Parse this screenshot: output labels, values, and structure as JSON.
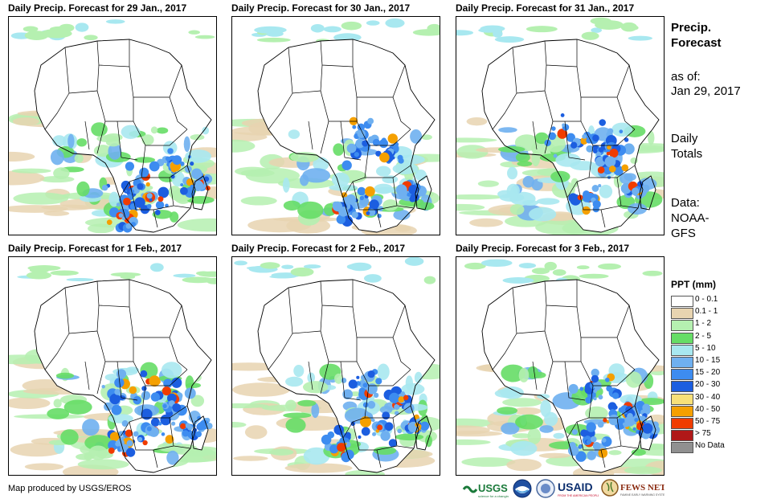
{
  "panels": [
    {
      "title": "Daily Precip. Forecast for 29 Jan., 2017",
      "rain": [
        [
          160,
          215,
          40
        ],
        [
          185,
          225,
          30
        ],
        [
          215,
          185,
          25
        ],
        [
          245,
          210,
          20
        ],
        [
          150,
          245,
          25
        ]
      ]
    },
    {
      "title": "Daily Precip. Forecast for 30 Jan., 2017",
      "rain": [
        [
          170,
          160,
          40
        ],
        [
          175,
          230,
          30
        ],
        [
          205,
          170,
          25
        ],
        [
          235,
          215,
          15
        ],
        [
          150,
          240,
          20
        ]
      ]
    },
    {
      "title": "Daily Precip. Forecast for 31 Jan., 2017",
      "rain": [
        [
          160,
          155,
          45
        ],
        [
          200,
          160,
          30
        ],
        [
          175,
          225,
          25
        ],
        [
          200,
          180,
          25
        ],
        [
          235,
          215,
          15
        ]
      ]
    },
    {
      "title": "Daily Precip. Forecast for 1 Feb., 2017",
      "rain": [
        [
          160,
          165,
          40
        ],
        [
          185,
          215,
          35
        ],
        [
          215,
          175,
          25
        ],
        [
          240,
          210,
          20
        ],
        [
          150,
          230,
          20
        ]
      ]
    },
    {
      "title": "Daily Precip. Forecast for 2 Feb., 2017",
      "rain": [
        [
          175,
          160,
          35
        ],
        [
          195,
          210,
          35
        ],
        [
          220,
          180,
          20
        ],
        [
          150,
          230,
          25
        ],
        [
          240,
          210,
          15
        ]
      ]
    },
    {
      "title": "Daily Precip. Forecast for 3 Feb., 2017",
      "rain": [
        [
          180,
          160,
          30
        ],
        [
          205,
          195,
          40
        ],
        [
          230,
          195,
          25
        ],
        [
          175,
          230,
          25
        ],
        [
          245,
          210,
          15
        ]
      ]
    }
  ],
  "sidebar": {
    "title_line1": "Precip.",
    "title_line2": "Forecast",
    "asof_label": "as of:",
    "asof_date": "Jan 29, 2017",
    "totals_line1": "Daily",
    "totals_line2": "Totals",
    "data_label": "Data:",
    "data_source_line1": "NOAA-",
    "data_source_line2": "GFS"
  },
  "legend": {
    "title": "PPT (mm)",
    "items": [
      {
        "label": "0 - 0.1",
        "color": "#ffffff"
      },
      {
        "label": "0.1 - 1",
        "color": "#e8d4b0"
      },
      {
        "label": "1 - 2",
        "color": "#b5f0b0"
      },
      {
        "label": "2 - 5",
        "color": "#66dd66"
      },
      {
        "label": "5 - 10",
        "color": "#a8e8f0"
      },
      {
        "label": "10 - 15",
        "color": "#6fb0f0"
      },
      {
        "label": "15 - 20",
        "color": "#3d8cf0"
      },
      {
        "label": "20 - 30",
        "color": "#1c5ee0"
      },
      {
        "label": "30 - 40",
        "color": "#f8e078"
      },
      {
        "label": "40 - 50",
        "color": "#f5a000"
      },
      {
        "label": "50 - 75",
        "color": "#f03c00"
      },
      {
        "label": "> 75",
        "color": "#b01818"
      },
      {
        "label": "No Data",
        "color": "#909090"
      }
    ]
  },
  "footer": {
    "credit": "Map produced by USGS/EROS"
  },
  "logos": {
    "usgs": "USGS",
    "noaa": "NOAA",
    "usaid": "USAID",
    "fewsnet": "FEWS NET"
  }
}
